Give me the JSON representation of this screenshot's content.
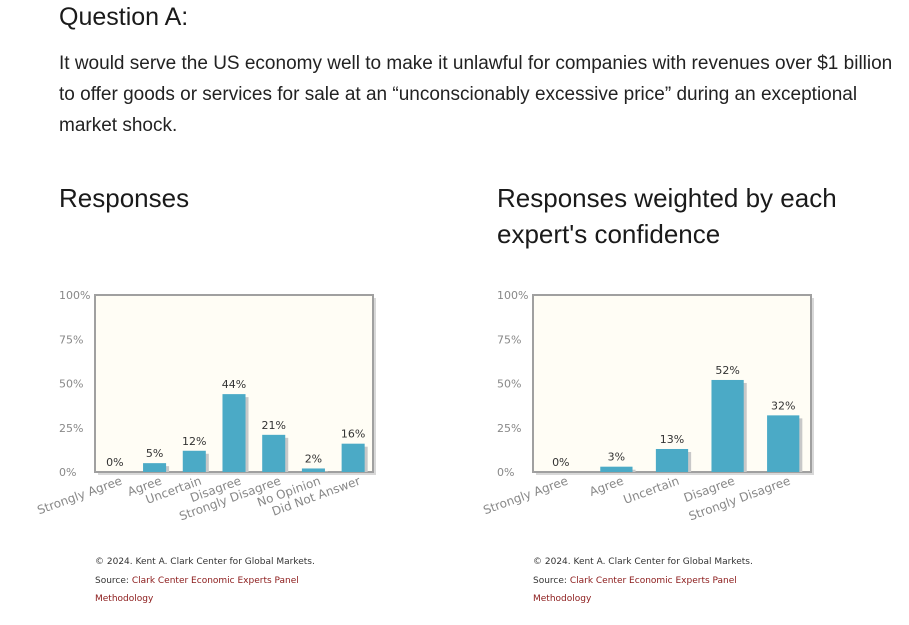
{
  "question": {
    "title": "Question A:",
    "text": "It would serve the US economy well to make it unlawful for companies with revenues over $1 billion to offer goods or services for sale at an “unconscionably excessive price” during an exceptional market shock."
  },
  "colors": {
    "bar": "#4baac6",
    "plot_bg": "#fffdf5",
    "frame": "#a0a0a0",
    "tick_text": "#888888",
    "link": "#8b1a1a"
  },
  "chart_data": [
    {
      "type": "bar",
      "title": "Responses",
      "categories": [
        "Strongly Agree",
        "Agree",
        "Uncertain",
        "Disagree",
        "Strongly Disagree",
        "No Opinion",
        "Did Not Answer"
      ],
      "values": [
        0,
        5,
        12,
        44,
        21,
        2,
        16
      ],
      "value_labels": [
        "0%",
        "5%",
        "12%",
        "44%",
        "21%",
        "2%",
        "16%"
      ],
      "yticks": [
        "0%",
        "25%",
        "50%",
        "75%",
        "100%"
      ],
      "ylim": [
        0,
        100
      ],
      "credit": "© 2024. Kent A. Clark Center for Global Markets.",
      "source_prefix": "Source:",
      "source_link": "Clark Center Economic Experts Panel",
      "methodology": "Methodology"
    },
    {
      "type": "bar",
      "title": "Responses weighted by each expert's confidence",
      "categories": [
        "Strongly Agree",
        "Agree",
        "Uncertain",
        "Disagree",
        "Strongly Disagree"
      ],
      "values": [
        0,
        3,
        13,
        52,
        32
      ],
      "value_labels": [
        "0%",
        "3%",
        "13%",
        "52%",
        "32%"
      ],
      "yticks": [
        "0%",
        "25%",
        "50%",
        "75%",
        "100%"
      ],
      "ylim": [
        0,
        100
      ],
      "credit": "© 2024. Kent A. Clark Center for Global Markets.",
      "source_prefix": "Source:",
      "source_link": "Clark Center Economic Experts Panel",
      "methodology": "Methodology"
    }
  ]
}
